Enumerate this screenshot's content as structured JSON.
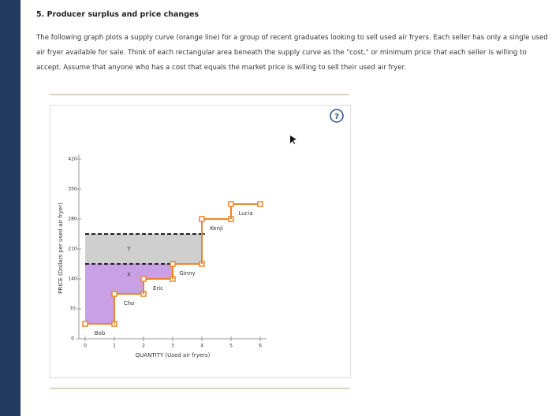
{
  "heading": "5. Producer surplus and price changes",
  "paragraph": "The following graph plots a supply curve (orange line) for a group of recent graduates looking to sell used air fryers. Each seller has only a single used air fryer available for sale. Think of each rectangular area beneath the supply curve as the \"cost,\" or minimum price that each seller is willing to accept. Assume that anyone who has a cost that equals the market price is willing to sell their used air fryer.",
  "help_icon": "?",
  "chart_data": {
    "type": "step",
    "ylabel": "PRICE (Dollars per used air fryer)",
    "xlabel": "QUANTITY (Used air fryers)",
    "xlim": [
      0,
      6
    ],
    "xticks": [
      0,
      1,
      2,
      3,
      4,
      5,
      6
    ],
    "ylim": [
      0,
      420
    ],
    "yticks": [
      0,
      70,
      140,
      210,
      280,
      350,
      420
    ],
    "color": "#e8862a",
    "sellers": [
      {
        "name": "Bob",
        "value": 35
      },
      {
        "name": "Cho",
        "value": 105
      },
      {
        "name": "Eric",
        "value": 140
      },
      {
        "name": "Ginny",
        "value": 175
      },
      {
        "name": "Kenji",
        "value": 280
      },
      {
        "name": "Lucia",
        "value": 315
      }
    ],
    "prices": [
      245,
      175
    ],
    "area_labels": [
      "X",
      "Y"
    ],
    "area_colors": [
      "#c9a0e6",
      "#cfcfcf"
    ]
  }
}
